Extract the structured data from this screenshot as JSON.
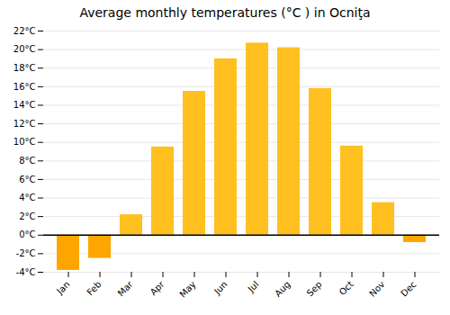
{
  "chart_data": {
    "type": "bar",
    "title": "Average monthly temperatures (°C ) in Ocniţa",
    "categories": [
      "Jan",
      "Feb",
      "Mar",
      "Apr",
      "May",
      "Jun",
      "Jul",
      "Aug",
      "Sep",
      "Oct",
      "Nov",
      "Dec"
    ],
    "values": [
      -3.8,
      -2.5,
      2.2,
      9.5,
      15.5,
      19.0,
      20.7,
      20.2,
      15.8,
      9.6,
      3.5,
      -0.8
    ],
    "colors": [
      "#FFA500",
      "#FFA500",
      "#FFC020",
      "#FFC020",
      "#FFC020",
      "#FFC020",
      "#FFC020",
      "#FFC020",
      "#FFC020",
      "#FFC020",
      "#FFC020",
      "#FFA500"
    ],
    "ylim": [
      -4,
      22
    ],
    "yticks": [
      {
        "value": -4,
        "label": "-4°C"
      },
      {
        "value": -2,
        "label": "-2°C"
      },
      {
        "value": 0,
        "label": "0°C"
      },
      {
        "value": 2,
        "label": "2°C"
      },
      {
        "value": 4,
        "label": "4°C"
      },
      {
        "value": 6,
        "label": "6°C"
      },
      {
        "value": 8,
        "label": "8°C"
      },
      {
        "value": 10,
        "label": "10°C"
      },
      {
        "value": 12,
        "label": "12°C"
      },
      {
        "value": 14,
        "label": "14°C"
      },
      {
        "value": 16,
        "label": "16°C"
      },
      {
        "value": 18,
        "label": "18°C"
      },
      {
        "value": 20,
        "label": "20°C"
      },
      {
        "value": 22,
        "label": "22°C"
      }
    ],
    "grid": true
  }
}
